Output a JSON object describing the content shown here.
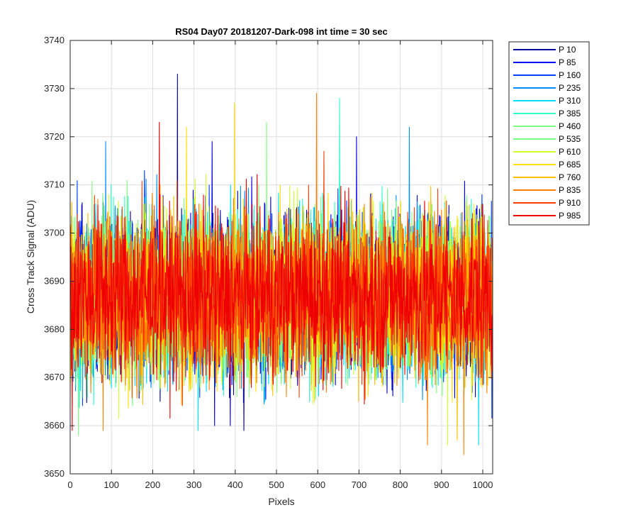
{
  "chart_data": {
    "type": "line",
    "title": "RS04 Day07 20181207-Dark-098 int time = 30 sec",
    "xlabel": "Pixels",
    "ylabel": "Cross Track Signal (ADU)",
    "xlim": [
      0,
      1024
    ],
    "ylim": [
      3650,
      3740
    ],
    "xticks": [
      0,
      100,
      200,
      300,
      400,
      500,
      600,
      700,
      800,
      900,
      1000
    ],
    "yticks": [
      3650,
      3660,
      3670,
      3680,
      3690,
      3700,
      3710,
      3720,
      3730,
      3740
    ],
    "grid": true,
    "legend_position": "outside-top-right",
    "noise_model": {
      "mean": 3687,
      "typical_range": [
        3667,
        3707
      ],
      "points_per_series": 1024
    },
    "series": [
      {
        "name": "P 10",
        "color": "#00009f",
        "spikes": [
          {
            "x": 260,
            "y": 3733
          },
          {
            "x": 421,
            "y": 3659
          },
          {
            "x": 388,
            "y": 3660
          },
          {
            "x": 350,
            "y": 3660
          }
        ]
      },
      {
        "name": "P 85",
        "color": "#0000ef",
        "spikes": [
          {
            "x": 694,
            "y": 3720
          },
          {
            "x": 344,
            "y": 3719
          }
        ]
      },
      {
        "name": "P 160",
        "color": "#003fff",
        "spikes": [
          {
            "x": 180,
            "y": 3713
          }
        ]
      },
      {
        "name": "P 235",
        "color": "#008fff",
        "spikes": [
          {
            "x": 86,
            "y": 3719
          },
          {
            "x": 822,
            "y": 3722
          }
        ]
      },
      {
        "name": "P 310",
        "color": "#00dfff",
        "spikes": [
          {
            "x": 990,
            "y": 3656
          },
          {
            "x": 310,
            "y": 3659
          }
        ]
      },
      {
        "name": "P 385",
        "color": "#2fffcf",
        "spikes": [
          {
            "x": 653,
            "y": 3728
          }
        ]
      },
      {
        "name": "P 460",
        "color": "#7fff7f",
        "spikes": [
          {
            "x": 476,
            "y": 3723
          }
        ]
      },
      {
        "name": "P 535",
        "color": "#7fff7f",
        "spikes": [
          {
            "x": 20,
            "y": 3658
          }
        ]
      },
      {
        "name": "P 610",
        "color": "#cfff2f",
        "spikes": [
          {
            "x": 915,
            "y": 3656
          }
        ]
      },
      {
        "name": "P 685",
        "color": "#ffdf00",
        "spikes": [
          {
            "x": 398,
            "y": 3727
          },
          {
            "x": 282,
            "y": 3722
          }
        ]
      },
      {
        "name": "P 760",
        "color": "#ffbf00",
        "spikes": [
          {
            "x": 938,
            "y": 3657
          }
        ]
      },
      {
        "name": "P 835",
        "color": "#ff7f00",
        "spikes": [
          {
            "x": 597,
            "y": 3729
          },
          {
            "x": 866,
            "y": 3656
          },
          {
            "x": 954,
            "y": 3654
          },
          {
            "x": 80,
            "y": 3659
          }
        ]
      },
      {
        "name": "P 910",
        "color": "#ff3f00",
        "spikes": [
          {
            "x": 615,
            "y": 3717
          }
        ]
      },
      {
        "name": "P 985",
        "color": "#ef0000",
        "spikes": [
          {
            "x": 216,
            "y": 3723
          },
          {
            "x": 5,
            "y": 3659
          }
        ]
      }
    ]
  }
}
